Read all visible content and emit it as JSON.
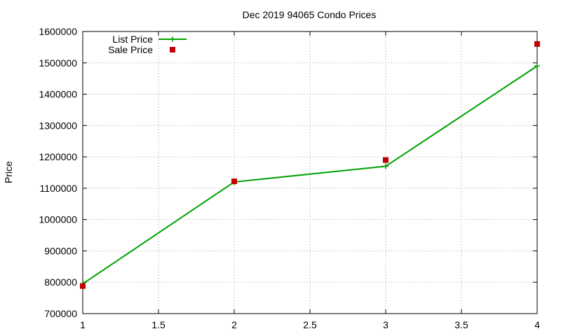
{
  "chart_data": {
    "type": "line",
    "title": "Dec 2019 94065 Condo Prices",
    "xlabel": "",
    "ylabel": "Price",
    "x": [
      1,
      2,
      3,
      4
    ],
    "xlim": [
      1,
      4
    ],
    "ylim": [
      700000,
      1600000
    ],
    "xticks": [
      1,
      1.5,
      2,
      2.5,
      3,
      3.5,
      4
    ],
    "xtick_labels": [
      "1",
      "1.5",
      "2",
      "2.5",
      "3",
      "3.5",
      "4"
    ],
    "yticks": [
      700000,
      800000,
      900000,
      1000000,
      1100000,
      1200000,
      1300000,
      1400000,
      1500000,
      1600000
    ],
    "ytick_labels": [
      "700000",
      "800000",
      "900000",
      "1000000",
      "1100000",
      "1200000",
      "1300000",
      "1400000",
      "1500000",
      "1600000"
    ],
    "grid": true,
    "legend_position": "top-left",
    "series": [
      {
        "name": "List Price",
        "style": "linespoints",
        "marker": "plus",
        "color": "#00a000",
        "values": [
          795000,
          1120000,
          1170000,
          1490000
        ]
      },
      {
        "name": "Sale Price",
        "style": "points",
        "marker": "square",
        "color": "#c00000",
        "values": [
          788000,
          1122000,
          1190000,
          1560000
        ]
      }
    ]
  }
}
